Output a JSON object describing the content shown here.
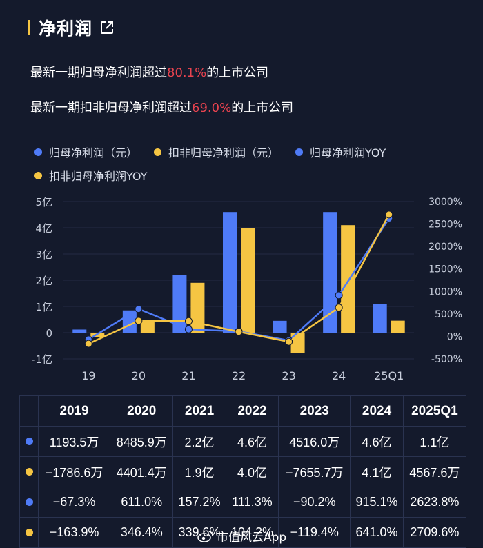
{
  "header": {
    "title": "净利润"
  },
  "summary": [
    {
      "prefix": "最新一期归母净利润超过",
      "value": "80.1%",
      "suffix": "的上市公司"
    },
    {
      "prefix": "最新一期扣非归母净利润超过",
      "value": "69.0%",
      "suffix": "的上市公司"
    }
  ],
  "legend": [
    {
      "label": "归母净利润（元）",
      "color": "#4f7bf7"
    },
    {
      "label": "扣非归母净利润（元）",
      "color": "#f5c543"
    },
    {
      "label": "归母净利润YOY",
      "color": "#4f7bf7"
    },
    {
      "label": "扣非归母净利润YOY",
      "color": "#f5c543"
    }
  ],
  "chart_data": {
    "type": "bar",
    "categories": [
      "19",
      "20",
      "21",
      "22",
      "23",
      "24",
      "25Q1"
    ],
    "left_axis": {
      "ticks": [
        "5亿",
        "4亿",
        "3亿",
        "2亿",
        "1亿",
        "0",
        "-1亿"
      ],
      "range": [
        -1,
        5
      ],
      "unit": "亿元"
    },
    "right_axis": {
      "ticks": [
        "3000%",
        "2500%",
        "2000%",
        "1500%",
        "1000%",
        "500%",
        "0%",
        "-500%"
      ],
      "range": [
        -500,
        3000
      ],
      "unit": "%"
    },
    "series": [
      {
        "name": "归母净利润（元）",
        "kind": "bar",
        "axis": "left",
        "color": "#4f7bf7",
        "values": [
          0.119,
          0.849,
          2.2,
          4.6,
          0.452,
          4.6,
          1.1
        ]
      },
      {
        "name": "扣非归母净利润（元）",
        "kind": "bar",
        "axis": "left",
        "color": "#f5c543",
        "values": [
          -0.179,
          0.44,
          1.9,
          4.0,
          -0.766,
          4.1,
          0.457
        ]
      },
      {
        "name": "归母净利润YOY",
        "kind": "line",
        "axis": "right",
        "color": "#4f7bf7",
        "values": [
          -67.3,
          611.0,
          157.2,
          111.3,
          -90.2,
          915.1,
          2623.8
        ]
      },
      {
        "name": "扣非归母净利润YOY",
        "kind": "line",
        "axis": "right",
        "color": "#f5c543",
        "values": [
          -163.9,
          346.4,
          339.6,
          104.2,
          -119.4,
          641.0,
          2709.6
        ]
      }
    ]
  },
  "table": {
    "headers": [
      "2019",
      "2020",
      "2021",
      "2022",
      "2023",
      "2024",
      "2025Q1"
    ],
    "rows": [
      {
        "color": "#4f7bf7",
        "cells": [
          "1193.5万",
          "8485.9万",
          "2.2亿",
          "4.6亿",
          "4516.0万",
          "4.6亿",
          "1.1亿"
        ]
      },
      {
        "color": "#f5c543",
        "cells": [
          "−1786.6万",
          "4401.4万",
          "1.9亿",
          "4.0亿",
          "−7655.7万",
          "4.1亿",
          "4567.6万"
        ]
      },
      {
        "color": "#4f7bf7",
        "cells": [
          "−67.3%",
          "611.0%",
          "157.2%",
          "111.3%",
          "−90.2%",
          "915.1%",
          "2623.8%"
        ]
      },
      {
        "color": "#f5c543",
        "cells": [
          "−163.9%",
          "346.4%",
          "339.6%",
          "104.2%",
          "−119.4%",
          "641.0%",
          "2709.6%"
        ]
      }
    ]
  },
  "watermark": {
    "text": "市值风云App"
  }
}
